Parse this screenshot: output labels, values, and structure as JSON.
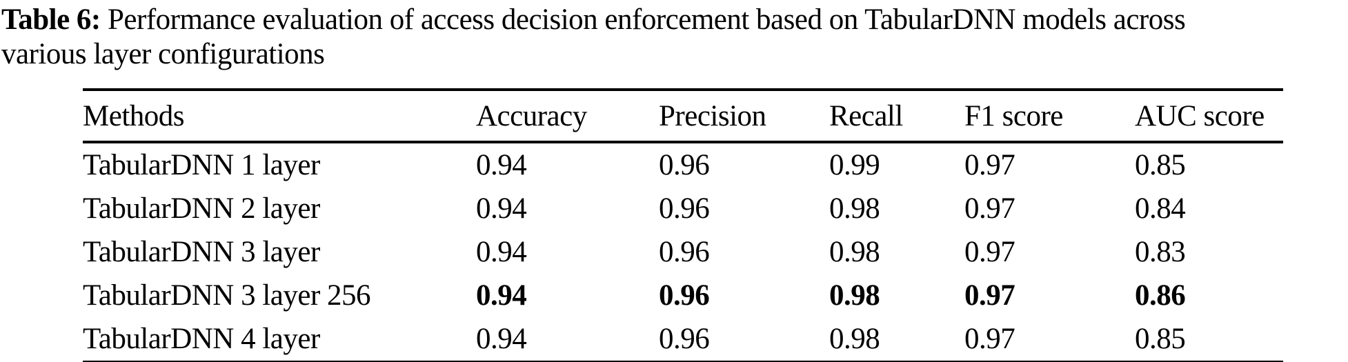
{
  "caption": {
    "label": "Table 6:",
    "line1": "Performance evaluation of access decision enforcement based on TabularDNN models across",
    "line2": "various layer configurations"
  },
  "table": {
    "columns": [
      "Methods",
      "Accuracy",
      "Precision",
      "Recall",
      "F1 score",
      "AUC score"
    ],
    "rows": [
      {
        "method": "TabularDNN 1 layer",
        "values": [
          "0.94",
          "0.96",
          "0.99",
          "0.97",
          "0.85"
        ],
        "bold": false
      },
      {
        "method": "TabularDNN 2 layer",
        "values": [
          "0.94",
          "0.96",
          "0.98",
          "0.97",
          "0.84"
        ],
        "bold": false
      },
      {
        "method": "TabularDNN 3 layer",
        "values": [
          "0.94",
          "0.96",
          "0.98",
          "0.97",
          "0.83"
        ],
        "bold": false
      },
      {
        "method": "TabularDNN 3 layer 256",
        "values": [
          "0.94",
          "0.96",
          "0.98",
          "0.97",
          "0.86"
        ],
        "bold": true
      },
      {
        "method": "TabularDNN 4 layer",
        "values": [
          "0.94",
          "0.96",
          "0.98",
          "0.97",
          "0.85"
        ],
        "bold": false
      }
    ]
  },
  "colors": {
    "text": "#000000",
    "background": "#ffffff",
    "rule": "#000000"
  }
}
